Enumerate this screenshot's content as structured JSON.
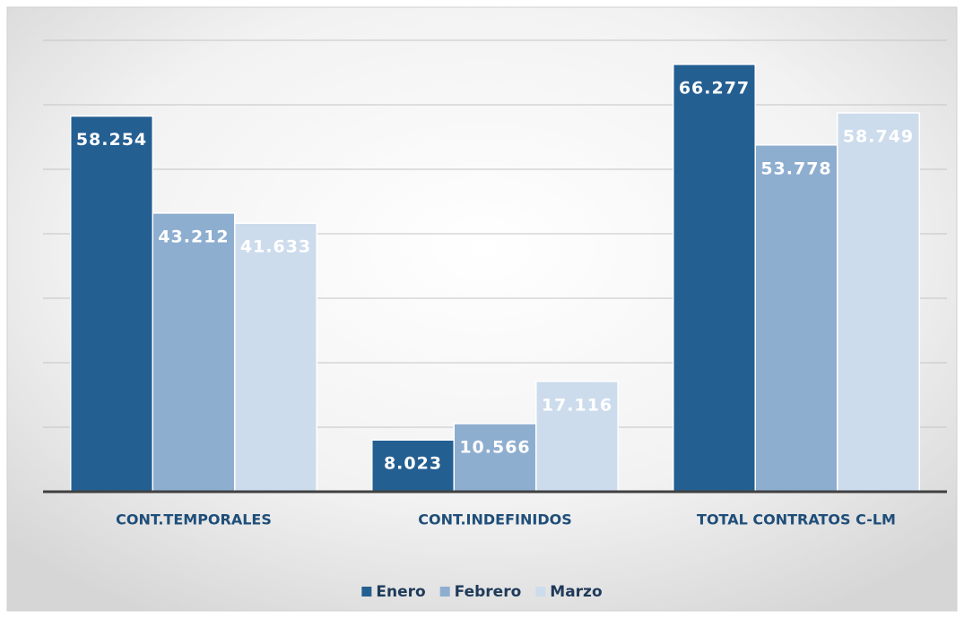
{
  "chart_data": {
    "type": "bar",
    "categories": [
      "CONT.TEMPORALES",
      "CONT.INDEFINIDOS",
      "TOTAL CONTRATOS C-LM"
    ],
    "series": [
      {
        "name": "Enero",
        "color": "#245f92",
        "values": [
          58254,
          8023,
          66277
        ],
        "value_labels": [
          "58.254",
          "8.023",
          "66.277"
        ]
      },
      {
        "name": "Febrero",
        "color": "#8eaed0",
        "values": [
          43212,
          10566,
          53778
        ],
        "value_labels": [
          "43.212",
          "10.566",
          "53.778"
        ]
      },
      {
        "name": "Marzo",
        "color": "#cddcec",
        "values": [
          41633,
          17116,
          58749
        ],
        "value_labels": [
          "41.633",
          "17.116",
          "58.749"
        ]
      }
    ],
    "ylim": [
      0,
      70000
    ],
    "yticks": [
      0,
      10000,
      20000,
      30000,
      40000,
      50000,
      60000,
      70000
    ],
    "grid": true,
    "legend": "bottom"
  }
}
